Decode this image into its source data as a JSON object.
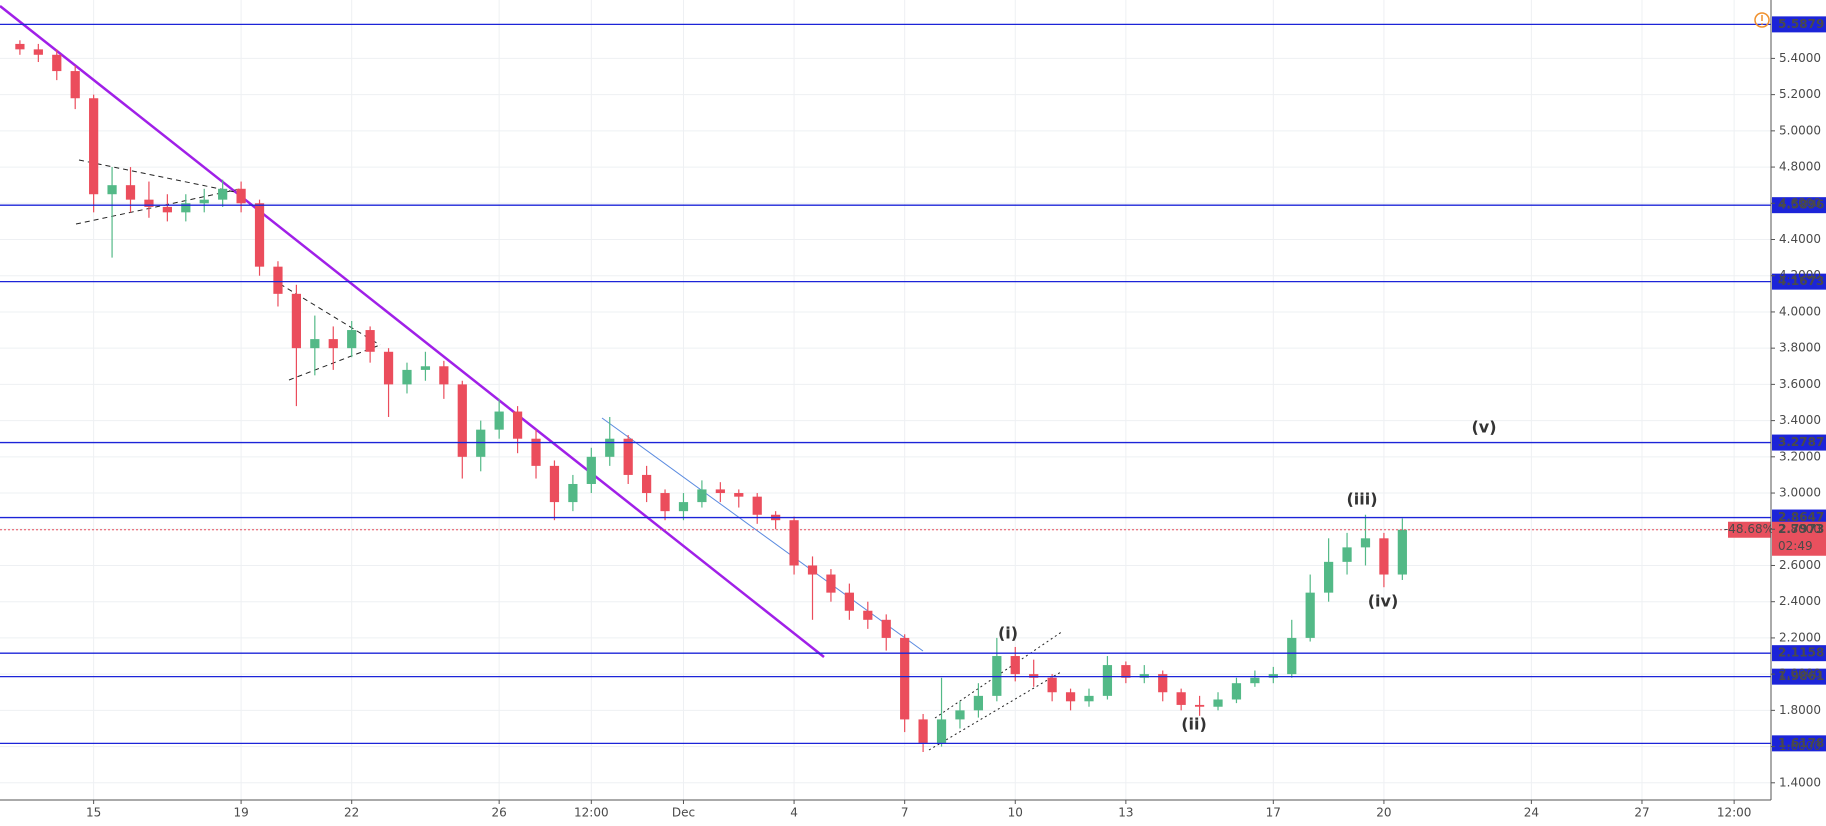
{
  "chart_data": {
    "type": "candlestick",
    "x": [
      13,
      13.5,
      14,
      14.5,
      15,
      15.5,
      16,
      16.5,
      17,
      17.5,
      18,
      18.5,
      19,
      19.5,
      20,
      20.5,
      21,
      21.5,
      22,
      22.5,
      23,
      23.5,
      24,
      24.5,
      25,
      25.5,
      26,
      26.5,
      27,
      27.5,
      28,
      28.5,
      29,
      29.5,
      30,
      30.5,
      31,
      31.5,
      32,
      32.5,
      33,
      33.5,
      34,
      34.5,
      35,
      35.5,
      36,
      36.5,
      37,
      37.5,
      38,
      38.5,
      39,
      39.5,
      40,
      40.5,
      41,
      41.5,
      42,
      42.5,
      43,
      43.5,
      44,
      44.5,
      45,
      45.5,
      46,
      46.5,
      47,
      47.5,
      48,
      48.5,
      49,
      49.5,
      50,
      50.5
    ],
    "ohlc": [
      [
        5.48,
        5.5,
        5.42,
        5.45
      ],
      [
        5.45,
        5.48,
        5.38,
        5.42
      ],
      [
        5.42,
        5.45,
        5.28,
        5.33
      ],
      [
        5.33,
        5.36,
        5.12,
        5.18
      ],
      [
        5.18,
        5.2,
        4.55,
        4.65
      ],
      [
        4.65,
        4.8,
        4.3,
        4.7
      ],
      [
        4.7,
        4.8,
        4.55,
        4.62
      ],
      [
        4.62,
        4.72,
        4.52,
        4.58
      ],
      [
        4.58,
        4.65,
        4.5,
        4.55
      ],
      [
        4.55,
        4.65,
        4.5,
        4.6
      ],
      [
        4.6,
        4.68,
        4.55,
        4.62
      ],
      [
        4.62,
        4.73,
        4.58,
        4.68
      ],
      [
        4.68,
        4.72,
        4.55,
        4.6
      ],
      [
        4.6,
        4.62,
        4.2,
        4.25
      ],
      [
        4.25,
        4.28,
        4.03,
        4.1
      ],
      [
        4.1,
        4.15,
        3.48,
        3.8
      ],
      [
        3.8,
        3.98,
        3.65,
        3.85
      ],
      [
        3.85,
        3.92,
        3.68,
        3.8
      ],
      [
        3.8,
        3.95,
        3.75,
        3.9
      ],
      [
        3.9,
        3.92,
        3.72,
        3.78
      ],
      [
        3.78,
        3.8,
        3.42,
        3.6
      ],
      [
        3.6,
        3.72,
        3.55,
        3.68
      ],
      [
        3.68,
        3.78,
        3.62,
        3.7
      ],
      [
        3.7,
        3.73,
        3.52,
        3.6
      ],
      [
        3.6,
        3.62,
        3.08,
        3.2
      ],
      [
        3.2,
        3.4,
        3.12,
        3.35
      ],
      [
        3.35,
        3.52,
        3.3,
        3.45
      ],
      [
        3.45,
        3.48,
        3.22,
        3.3
      ],
      [
        3.3,
        3.35,
        3.08,
        3.15
      ],
      [
        3.15,
        3.18,
        2.85,
        2.95
      ],
      [
        2.95,
        3.1,
        2.9,
        3.05
      ],
      [
        3.05,
        3.25,
        3.0,
        3.2
      ],
      [
        3.2,
        3.42,
        3.15,
        3.3
      ],
      [
        3.3,
        3.32,
        3.05,
        3.1
      ],
      [
        3.1,
        3.15,
        2.95,
        3.0
      ],
      [
        3.0,
        3.02,
        2.85,
        2.9
      ],
      [
        2.9,
        3.0,
        2.85,
        2.95
      ],
      [
        2.95,
        3.07,
        2.92,
        3.02
      ],
      [
        3.02,
        3.06,
        2.95,
        3.0
      ],
      [
        3.0,
        3.02,
        2.92,
        2.98
      ],
      [
        2.98,
        3.0,
        2.83,
        2.88
      ],
      [
        2.88,
        2.9,
        2.8,
        2.85
      ],
      [
        2.85,
        2.87,
        2.55,
        2.6
      ],
      [
        2.6,
        2.65,
        2.3,
        2.55
      ],
      [
        2.55,
        2.58,
        2.4,
        2.45
      ],
      [
        2.45,
        2.5,
        2.3,
        2.35
      ],
      [
        2.35,
        2.4,
        2.25,
        2.3
      ],
      [
        2.3,
        2.33,
        2.13,
        2.2
      ],
      [
        2.2,
        2.22,
        1.68,
        1.75
      ],
      [
        1.75,
        1.78,
        1.57,
        1.62
      ],
      [
        1.62,
        1.98,
        1.6,
        1.75
      ],
      [
        1.75,
        1.85,
        1.7,
        1.8
      ],
      [
        1.8,
        1.95,
        1.76,
        1.88
      ],
      [
        1.88,
        2.2,
        1.85,
        2.1
      ],
      [
        2.1,
        2.15,
        1.96,
        2.0
      ],
      [
        2.0,
        2.08,
        1.93,
        1.98
      ],
      [
        1.98,
        2.0,
        1.85,
        1.9
      ],
      [
        1.9,
        1.92,
        1.8,
        1.85
      ],
      [
        1.85,
        1.92,
        1.82,
        1.88
      ],
      [
        1.88,
        2.1,
        1.86,
        2.05
      ],
      [
        2.05,
        2.07,
        1.95,
        1.98
      ],
      [
        1.98,
        2.05,
        1.95,
        2.0
      ],
      [
        2.0,
        2.02,
        1.85,
        1.9
      ],
      [
        1.9,
        1.92,
        1.8,
        1.83
      ],
      [
        1.83,
        1.88,
        1.77,
        1.82
      ],
      [
        1.82,
        1.9,
        1.8,
        1.86
      ],
      [
        1.86,
        1.98,
        1.84,
        1.95
      ],
      [
        1.95,
        2.02,
        1.93,
        1.98
      ],
      [
        1.98,
        2.04,
        1.95,
        2.0
      ],
      [
        2.0,
        2.3,
        1.98,
        2.2
      ],
      [
        2.2,
        2.55,
        2.18,
        2.45
      ],
      [
        2.45,
        2.75,
        2.4,
        2.62
      ],
      [
        2.62,
        2.78,
        2.55,
        2.7
      ],
      [
        2.7,
        2.88,
        2.6,
        2.75
      ],
      [
        2.75,
        2.78,
        2.48,
        2.55
      ],
      [
        2.55,
        2.86,
        2.52,
        2.7973
      ]
    ],
    "up_color": "#53b987",
    "down_color": "#eb4d5c",
    "xlim": [
      12.46,
      60.5
    ],
    "xticks": [
      15,
      19,
      22,
      26,
      {
        "value": 28.5,
        "label": "12:00"
      },
      {
        "value": 31,
        "label": "Dec"
      },
      {
        "value": 34,
        "label": "4"
      },
      {
        "value": 37,
        "label": "7"
      },
      {
        "value": 40,
        "label": "10"
      },
      {
        "value": 43,
        "label": "13"
      },
      {
        "value": 47,
        "label": "17"
      },
      {
        "value": 50,
        "label": "20"
      },
      {
        "value": 54,
        "label": "24"
      },
      {
        "value": 57,
        "label": "27"
      },
      {
        "value": 59.5,
        "label": "12:00"
      }
    ],
    "ylim": [
      1.305,
      5.7225
    ],
    "yticks": [
      {
        "value": 1.4,
        "label": "1.4000"
      },
      {
        "value": 1.6,
        "label": "1.6000"
      },
      {
        "value": 1.8,
        "label": "1.8000"
      },
      {
        "value": 2.0,
        "label": "2.0000"
      },
      {
        "value": 2.2,
        "label": "2.2000"
      },
      {
        "value": 2.4,
        "label": "2.4000"
      },
      {
        "value": 2.6,
        "label": "2.6000"
      },
      {
        "value": 2.8,
        "label": "2.8000"
      },
      {
        "value": 3.0,
        "label": "3.0000"
      },
      {
        "value": 3.2,
        "label": "3.2000"
      },
      {
        "value": 3.4,
        "label": "3.4000"
      },
      {
        "value": 3.6,
        "label": "3.6000"
      },
      {
        "value": 3.8,
        "label": "3.8000"
      },
      {
        "value": 4.0,
        "label": "4.0000"
      },
      {
        "value": 4.2,
        "label": "4.2000"
      },
      {
        "value": 4.4,
        "label": "4.4000"
      },
      {
        "value": 4.6,
        "label": "4.6000"
      },
      {
        "value": 4.8,
        "label": "4.8000"
      },
      {
        "value": 5.0,
        "label": "5.0000"
      },
      {
        "value": 5.2,
        "label": "5.2000"
      },
      {
        "value": 5.4,
        "label": "5.4000"
      }
    ],
    "grid": true,
    "levels": [
      5.5879,
      4.5896,
      4.1673,
      3.2787,
      2.8647,
      2.1158,
      1.9861,
      1.6178
    ],
    "level_color": "#1c24d8",
    "last": {
      "value": 2.7973,
      "change": "-48.68%",
      "countdown": "02:49",
      "color": "#e8505e"
    },
    "annotations": [
      "(i)",
      "(ii)",
      "(iii)",
      "(iv)",
      "(v)"
    ]
  }
}
